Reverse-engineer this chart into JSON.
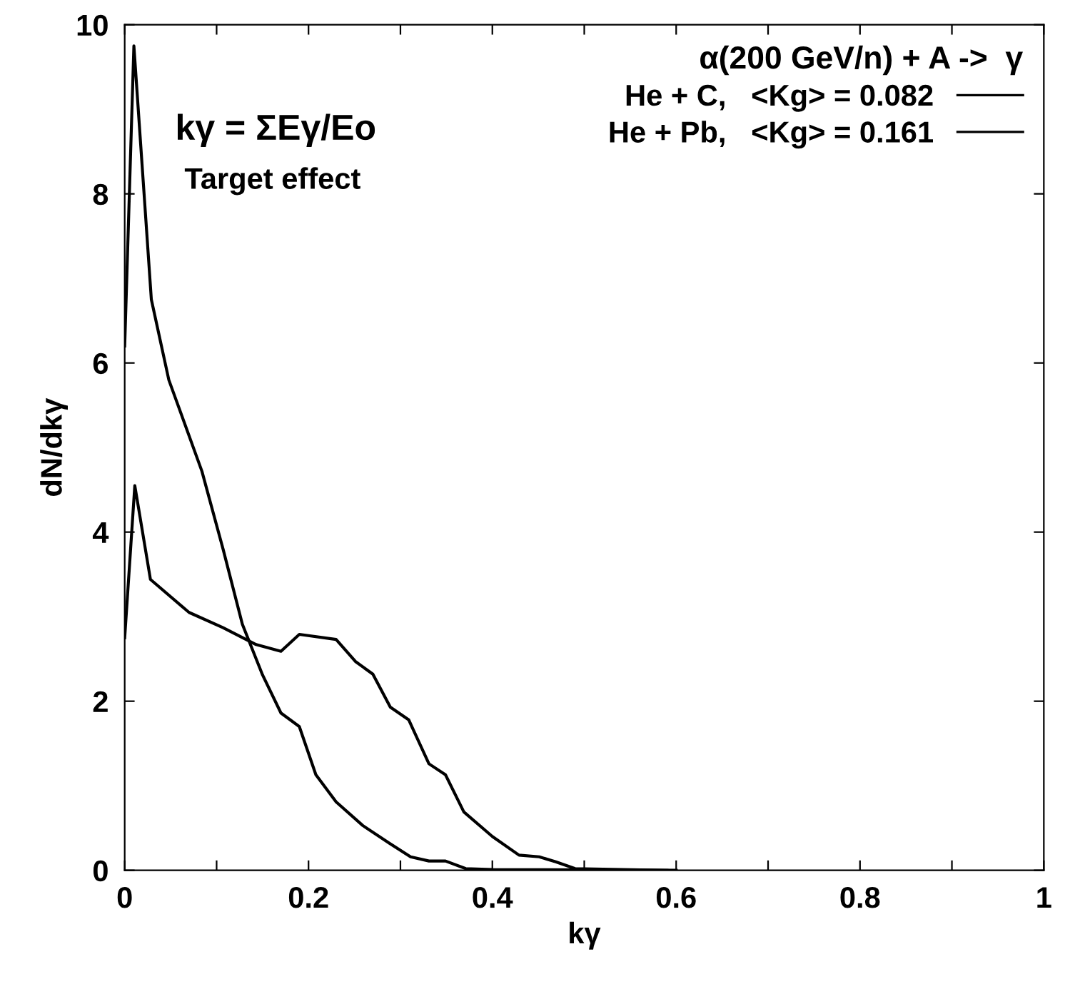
{
  "chart_data": {
    "type": "line",
    "xlabel": "kγ",
    "ylabel": "dN/dkγ",
    "legend_title": "α(200 GeV/n) + A ->  γ",
    "series": [
      {
        "name": "He + C,   <Kg> = 0.082",
        "color": "#000000",
        "x": [
          0,
          0.01,
          0.029,
          0.048,
          0.084,
          0.107,
          0.128,
          0.15,
          0.17,
          0.19,
          0.208,
          0.23,
          0.259,
          0.288,
          0.311,
          0.331,
          0.349,
          0.371,
          0.4,
          0.6
        ],
        "values": [
          6.2,
          9.75,
          6.75,
          5.8,
          4.72,
          3.8,
          2.91,
          2.31,
          1.86,
          1.7,
          1.13,
          0.81,
          0.53,
          0.32,
          0.16,
          0.11,
          0.11,
          0.02,
          0.01,
          0
        ]
      },
      {
        "name": "He + Pb,   <Kg> = 0.161",
        "color": "#000000",
        "x": [
          0,
          0.011,
          0.028,
          0.07,
          0.107,
          0.143,
          0.17,
          0.19,
          0.23,
          0.251,
          0.27,
          0.289,
          0.309,
          0.331,
          0.349,
          0.369,
          0.4,
          0.429,
          0.451,
          0.469,
          0.49,
          0.59
        ],
        "values": [
          2.75,
          4.55,
          3.44,
          3.05,
          2.87,
          2.67,
          2.59,
          2.79,
          2.73,
          2.47,
          2.32,
          1.93,
          1.78,
          1.26,
          1.13,
          0.69,
          0.4,
          0.18,
          0.16,
          0.1,
          0.02,
          0
        ]
      }
    ],
    "xlim": [
      0,
      1
    ],
    "ylim": [
      0,
      10
    ],
    "xticks": [
      0,
      {
        "value": 0.1,
        "label": null
      },
      0.2,
      {
        "value": 0.3,
        "label": null
      },
      0.4,
      {
        "value": 0.5,
        "label": null
      },
      0.6,
      {
        "value": 0.7,
        "label": null
      },
      0.8,
      {
        "value": 0.9,
        "label": null
      },
      1
    ],
    "yticks": [
      0,
      2,
      4,
      6,
      8,
      10
    ],
    "annotations": [
      "kγ = ΣEγ/Eo",
      "Target effect"
    ],
    "legend": "top right",
    "grid": false,
    "marker": "none",
    "line_style": "solid"
  }
}
